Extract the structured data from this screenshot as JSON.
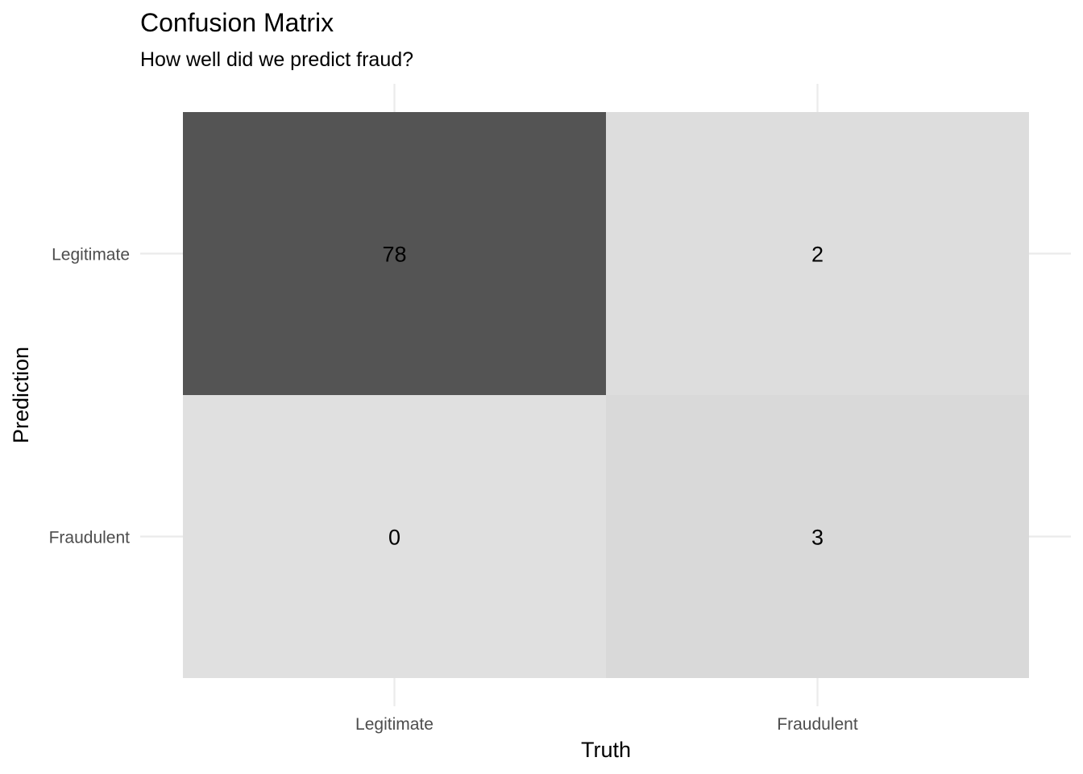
{
  "chart_data": {
    "type": "heatmap",
    "title": "Confusion Matrix",
    "subtitle": "How well did we predict fraud?",
    "xlabel": "Truth",
    "ylabel": "Prediction",
    "x_categories": [
      "Legitimate",
      "Fraudulent"
    ],
    "y_categories": [
      "Legitimate",
      "Fraudulent"
    ],
    "cells": [
      {
        "truth": "Legitimate",
        "prediction": "Legitimate",
        "value": 78,
        "fill": "#545454"
      },
      {
        "truth": "Fraudulent",
        "prediction": "Legitimate",
        "value": 2,
        "fill": "#dddddd"
      },
      {
        "truth": "Legitimate",
        "prediction": "Fraudulent",
        "value": 0,
        "fill": "#e0e0e0"
      },
      {
        "truth": "Fraudulent",
        "prediction": "Fraudulent",
        "value": 3,
        "fill": "#d9d9d9"
      }
    ],
    "grid": true,
    "legend": "none"
  }
}
